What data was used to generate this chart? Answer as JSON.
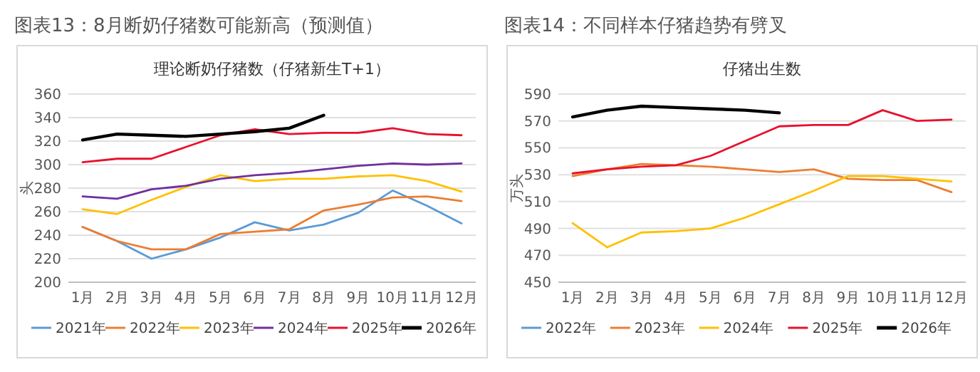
{
  "chart_data": [
    {
      "type": "line",
      "title": "图表13：8月断奶仔猪数可能新高（预测值）",
      "subtitle": "理论断奶仔猪数（仔猪新生T+1）",
      "ylabel": "头",
      "categories": [
        "1月",
        "2月",
        "3月",
        "4月",
        "5月",
        "6月",
        "7月",
        "8月",
        "9月",
        "10月",
        "11月",
        "12月"
      ],
      "ylim": [
        200,
        360
      ],
      "yticks": [
        200,
        220,
        240,
        260,
        280,
        300,
        320,
        340,
        360
      ],
      "grid": "y",
      "legend": "bottom",
      "series": [
        {
          "name": "2021年",
          "color": "#5b9bd5",
          "values": [
            247,
            235,
            220,
            228,
            238,
            251,
            244,
            249,
            259,
            278,
            265,
            250
          ]
        },
        {
          "name": "2022年",
          "color": "#ed7d31",
          "values": [
            247,
            235,
            228,
            228,
            241,
            243,
            245,
            261,
            266,
            272,
            273,
            269
          ]
        },
        {
          "name": "2023年",
          "color": "#ffc000",
          "values": [
            262,
            258,
            270,
            281,
            291,
            286,
            288,
            288,
            290,
            291,
            286,
            277
          ]
        },
        {
          "name": "2024年",
          "color": "#7030a0",
          "values": [
            273,
            271,
            279,
            282,
            288,
            291,
            293,
            296,
            299,
            301,
            300,
            301
          ]
        },
        {
          "name": "2025年",
          "color": "#e8112d",
          "values": [
            302,
            305,
            305,
            315,
            325,
            330,
            326,
            327,
            327,
            331,
            326,
            325
          ]
        },
        {
          "name": "2026年",
          "color": "#000000",
          "values": [
            321,
            326,
            325,
            324,
            326,
            328,
            331,
            342,
            null,
            null,
            null,
            null
          ]
        }
      ]
    },
    {
      "type": "line",
      "title": "图表14：不同样本仔猪趋势有劈叉",
      "subtitle": "仔猪出生数",
      "ylabel": "万头",
      "categories": [
        "1月",
        "2月",
        "3月",
        "4月",
        "5月",
        "6月",
        "7月",
        "8月",
        "9月",
        "10月",
        "11月",
        "12月"
      ],
      "ylim": [
        450,
        590
      ],
      "yticks": [
        450,
        470,
        490,
        510,
        530,
        550,
        570,
        590
      ],
      "grid": "y",
      "legend": "bottom",
      "series": [
        {
          "name": "2022年",
          "color": "#5b9bd5",
          "values": [
            null,
            null,
            null,
            null,
            null,
            null,
            null,
            null,
            null,
            null,
            null,
            null
          ]
        },
        {
          "name": "2023年",
          "color": "#ed7d31",
          "values": [
            529,
            534,
            538,
            537,
            536,
            534,
            532,
            534,
            527,
            526,
            526,
            517
          ]
        },
        {
          "name": "2024年",
          "color": "#ffc000",
          "values": [
            494,
            476,
            487,
            488,
            490,
            498,
            508,
            518,
            529,
            529,
            527,
            525
          ]
        },
        {
          "name": "2025年",
          "color": "#e8112d",
          "values": [
            531,
            534,
            536,
            537,
            544,
            555,
            566,
            567,
            567,
            578,
            570,
            571
          ]
        },
        {
          "name": "2026年",
          "color": "#000000",
          "values": [
            573,
            578,
            581,
            580,
            579,
            578,
            576,
            null,
            null,
            null,
            null,
            null
          ]
        }
      ]
    }
  ]
}
